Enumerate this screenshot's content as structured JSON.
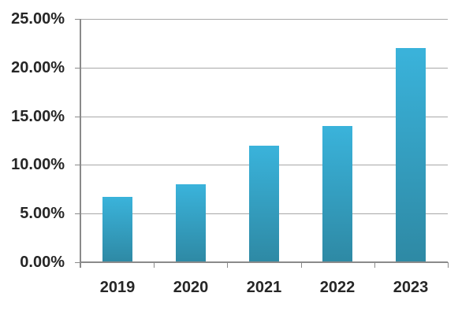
{
  "chart_data": {
    "type": "bar",
    "title": "",
    "xlabel": "",
    "ylabel": "",
    "categories": [
      "2019",
      "2020",
      "2021",
      "2022",
      "2023"
    ],
    "values": [
      6.7,
      8,
      12,
      14,
      22
    ],
    "value_format": "percent",
    "yticks": [
      "0.00%",
      "5.00%",
      "10.00%",
      "15.00%",
      "20.00%",
      "25.00%"
    ],
    "ytick_values": [
      0,
      5,
      10,
      15,
      20,
      25
    ],
    "ylim": [
      0,
      25
    ],
    "grid": true,
    "legend": "none",
    "colors": {
      "bar_gradient_top": "#3ab3db",
      "bar_gradient_bottom": "#2e89a4",
      "gridline": "#a8a8a8",
      "axis": "#8a8a8a",
      "label": "#262626",
      "background": "#ffffff"
    }
  }
}
